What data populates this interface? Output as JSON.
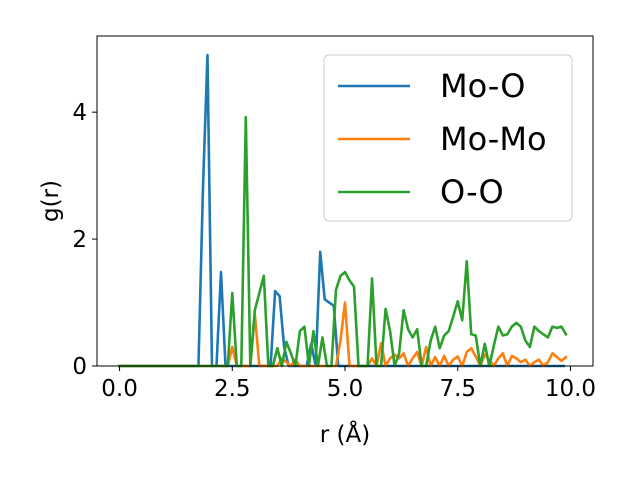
{
  "chart_data": {
    "type": "line",
    "xlabel": "r (Å)",
    "ylabel": "g(r)",
    "xlim": [
      -0.5,
      10.5
    ],
    "ylim": [
      0,
      5.2
    ],
    "x_ticks": [
      0.0,
      2.5,
      5.0,
      7.5,
      10.0
    ],
    "x_tick_labels": [
      "0.0",
      "2.5",
      "5.0",
      "7.5",
      "10.0"
    ],
    "y_ticks": [
      0,
      2,
      4
    ],
    "y_tick_labels": [
      "0",
      "2",
      "4"
    ],
    "grid": false,
    "legend_position": "top-right",
    "series": [
      {
        "name": "Mo-O",
        "color": "#1f77b4",
        "x": [
          0.0,
          1.75,
          1.85,
          1.95,
          2.05,
          2.15,
          2.25,
          2.35,
          2.45,
          2.55,
          2.65,
          2.75,
          2.85,
          2.95,
          3.05,
          3.15,
          3.25,
          3.35,
          3.45,
          3.55,
          3.65,
          3.75,
          3.85,
          3.95,
          4.05,
          4.15,
          4.25,
          4.35,
          4.45,
          4.55,
          4.65,
          4.75,
          4.85,
          4.95,
          5.05,
          5.15,
          5.25,
          5.35,
          5.45,
          5.55,
          5.65,
          5.75,
          5.85,
          5.95,
          6.05,
          6.15,
          6.25,
          6.35,
          6.45,
          6.55,
          6.65,
          6.75,
          6.85,
          6.95,
          7.05,
          7.15,
          7.25,
          7.35,
          7.45,
          7.55,
          7.65,
          7.75,
          7.85,
          7.95,
          8.05,
          8.15,
          8.25,
          8.35,
          8.45,
          8.55,
          8.65,
          8.75,
          8.85,
          8.95,
          9.05,
          9.15,
          9.25,
          9.35,
          9.45,
          9.55,
          9.65,
          9.75,
          9.85
        ],
        "y": [
          0.0,
          0.0,
          2.8,
          4.9,
          0.0,
          0.0,
          1.48,
          0.0,
          0.0,
          0.0,
          0.0,
          0.0,
          0.0,
          0.0,
          0.0,
          0.0,
          0.0,
          0.0,
          1.18,
          1.1,
          0.3,
          0.0,
          0.0,
          0.0,
          0.0,
          0.0,
          0.35,
          0.0,
          1.8,
          1.05,
          1.0,
          0.95,
          0.0,
          0.0,
          0.0,
          0.0,
          0.0,
          0.0,
          0.0,
          0.0,
          0.0,
          0.0,
          0.0,
          0.0,
          0.0,
          0.0,
          0.0,
          0.0,
          0.0,
          0.0,
          0.0,
          0.0,
          0.0,
          0.0,
          0.0,
          0.0,
          0.0,
          0.0,
          0.0,
          0.0,
          0.0,
          0.0,
          0.0,
          0.0,
          0.0,
          0.0,
          0.0,
          0.0,
          0.0,
          0.0,
          0.0,
          0.0,
          0.0,
          0.0,
          0.0,
          0.0,
          0.0,
          0.0,
          0.0,
          0.0,
          0.0,
          0.0,
          0.0
        ]
      },
      {
        "name": "Mo-Mo",
        "color": "#ff7f0e",
        "x": [
          0.0,
          2.4,
          2.5,
          2.6,
          2.9,
          3.0,
          3.1,
          3.5,
          3.6,
          3.8,
          3.9,
          4.0,
          4.8,
          4.9,
          5.0,
          5.1,
          5.5,
          5.6,
          5.7,
          5.8,
          5.9,
          6.0,
          6.1,
          6.2,
          6.3,
          6.4,
          6.5,
          6.6,
          6.7,
          6.8,
          6.9,
          7.0,
          7.1,
          7.2,
          7.3,
          7.4,
          7.5,
          7.6,
          7.7,
          7.8,
          7.9,
          8.0,
          8.1,
          8.2,
          8.3,
          8.4,
          8.5,
          8.6,
          8.7,
          8.8,
          8.9,
          9.0,
          9.1,
          9.2,
          9.3,
          9.4,
          9.5,
          9.6,
          9.7,
          9.8,
          9.9
        ],
        "y": [
          0.0,
          0.0,
          0.3,
          0.0,
          0.0,
          0.82,
          0.0,
          0.0,
          0.12,
          0.0,
          0.1,
          0.0,
          0.0,
          0.4,
          1.0,
          0.0,
          0.0,
          0.12,
          0.0,
          0.36,
          0.0,
          0.12,
          0.18,
          0.12,
          0.2,
          0.0,
          0.12,
          0.22,
          0.0,
          0.3,
          0.0,
          0.14,
          0.0,
          0.16,
          0.0,
          0.1,
          0.15,
          0.0,
          0.22,
          0.28,
          0.15,
          0.0,
          0.18,
          0.1,
          0.0,
          0.12,
          0.2,
          0.0,
          0.16,
          0.12,
          0.06,
          0.1,
          0.0,
          0.06,
          0.1,
          0.0,
          0.06,
          0.2,
          0.14,
          0.08,
          0.14
        ]
      },
      {
        "name": "O-O",
        "color": "#2ca02c",
        "x": [
          0.0,
          2.4,
          2.5,
          2.6,
          2.7,
          2.8,
          2.9,
          3.0,
          3.1,
          3.2,
          3.3,
          3.4,
          3.5,
          3.6,
          3.7,
          3.8,
          3.9,
          4.0,
          4.1,
          4.2,
          4.3,
          4.4,
          4.5,
          4.6,
          4.7,
          4.8,
          4.9,
          5.0,
          5.1,
          5.2,
          5.3,
          5.4,
          5.5,
          5.6,
          5.7,
          5.8,
          5.9,
          6.0,
          6.1,
          6.2,
          6.3,
          6.4,
          6.5,
          6.6,
          6.7,
          6.8,
          6.9,
          7.0,
          7.1,
          7.2,
          7.3,
          7.4,
          7.5,
          7.6,
          7.7,
          7.8,
          7.9,
          8.0,
          8.1,
          8.2,
          8.3,
          8.4,
          8.5,
          8.6,
          8.7,
          8.8,
          8.9,
          9.0,
          9.1,
          9.2,
          9.3,
          9.4,
          9.5,
          9.6,
          9.7,
          9.8,
          9.9
        ],
        "y": [
          0.0,
          0.0,
          1.15,
          0.0,
          0.0,
          3.92,
          0.0,
          0.88,
          1.15,
          1.42,
          0.0,
          0.0,
          0.28,
          0.0,
          0.38,
          0.2,
          0.0,
          0.55,
          0.62,
          0.0,
          0.55,
          0.0,
          0.45,
          0.0,
          0.0,
          1.2,
          1.42,
          1.48,
          1.35,
          1.25,
          0.0,
          0.0,
          0.0,
          1.38,
          0.0,
          0.0,
          0.9,
          0.55,
          0.0,
          0.2,
          0.88,
          0.58,
          0.45,
          0.58,
          0.0,
          0.0,
          0.4,
          0.62,
          0.28,
          0.48,
          0.55,
          0.78,
          1.02,
          0.72,
          1.65,
          0.5,
          0.48,
          0.0,
          0.35,
          0.0,
          0.32,
          0.62,
          0.48,
          0.5,
          0.62,
          0.68,
          0.62,
          0.4,
          0.3,
          0.62,
          0.55,
          0.5,
          0.45,
          0.62,
          0.6,
          0.62,
          0.5
        ]
      }
    ]
  }
}
